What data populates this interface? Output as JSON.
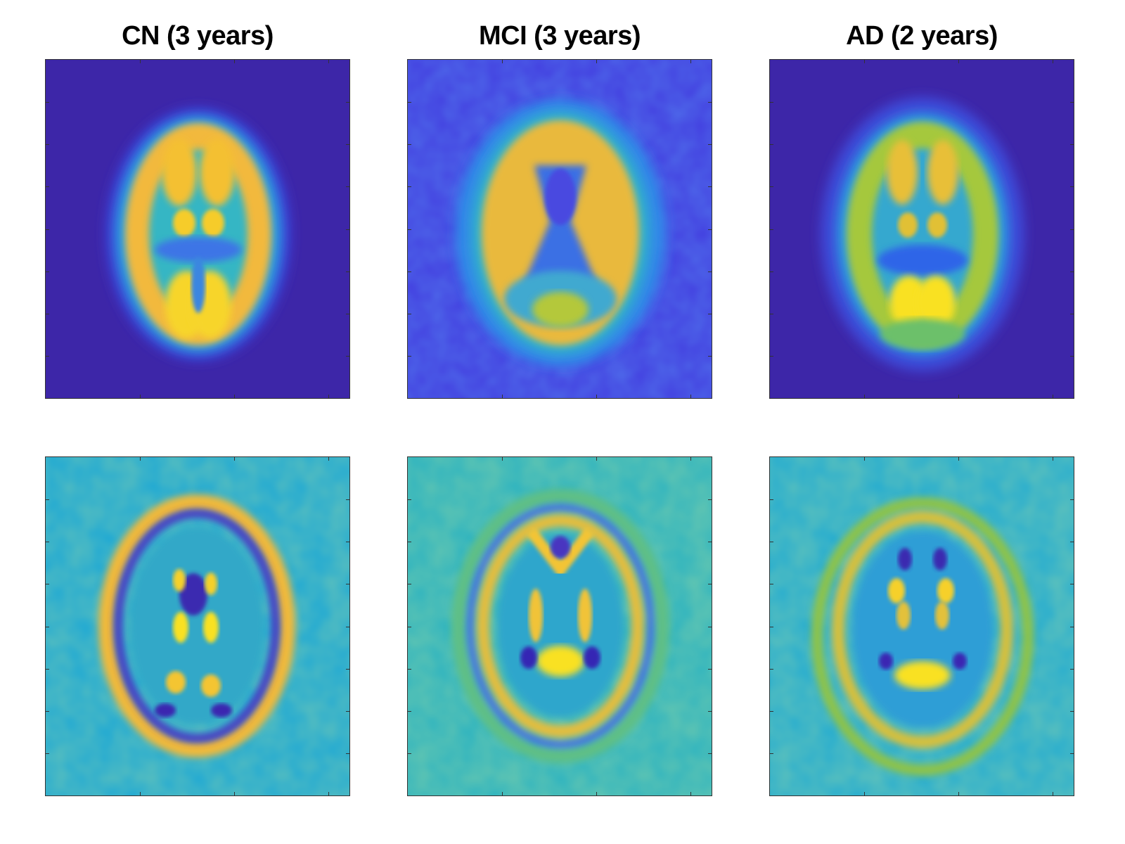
{
  "figure": {
    "columns": [
      {
        "title": "CN (3 years)"
      },
      {
        "title": "MCI (3 years)"
      },
      {
        "title": "AD (2 years)"
      }
    ],
    "rows": [
      {
        "image_semantic": "mean brain PET axial slice",
        "colormap": "parula"
      },
      {
        "image_semantic": "brain PET difference / component map",
        "colormap": "parula"
      }
    ],
    "colors": {
      "dark_blue": "#3d26a8",
      "blue": "#2c6ef0",
      "cyan": "#1aa9d8",
      "teal": "#3cbfa4",
      "green": "#9fc83a",
      "orange": "#f4b93b",
      "yellow": "#f9e123"
    }
  }
}
